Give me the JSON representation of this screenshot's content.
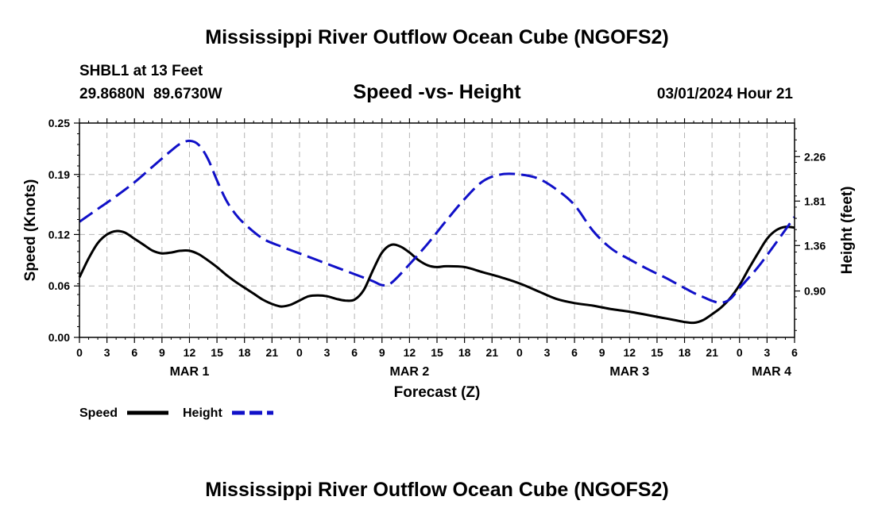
{
  "header": {
    "title": "Mississippi River Outflow Ocean Cube (NGOFS2)",
    "station": "SHBL1 at 13 Feet",
    "coordinates": "29.8680N  89.6730W",
    "subtitle": "Speed -vs- Height",
    "timestamp": "03/01/2024 Hour 21"
  },
  "footer": {
    "title": "Mississippi River Outflow Ocean Cube (NGOFS2)"
  },
  "legend": {
    "speed_label": "Speed",
    "height_label": "Height"
  },
  "colors": {
    "speed": "#000000",
    "height": "#1010c8",
    "grid": "#b4b4b4"
  },
  "chart_data": {
    "type": "line",
    "xlabel": "Forecast (Z)",
    "ylabel": "Speed (Knots)",
    "y2label": "Height (feet)",
    "xlim": [
      0,
      78
    ],
    "ylim": [
      0,
      0.25
    ],
    "y2lim": [
      0.43,
      2.6
    ],
    "x_ticks": [
      0,
      3,
      6,
      9,
      12,
      15,
      18,
      21,
      24,
      27,
      30,
      33,
      36,
      39,
      42,
      45,
      48,
      51,
      54,
      57,
      60,
      63,
      66,
      69,
      72,
      75,
      78
    ],
    "x_tick_labels": [
      "0",
      "3",
      "6",
      "9",
      "12",
      "15",
      "18",
      "21",
      "0",
      "3",
      "6",
      "9",
      "12",
      "15",
      "18",
      "21",
      "0",
      "3",
      "6",
      "9",
      "12",
      "15",
      "18",
      "21",
      "0",
      "3",
      "6"
    ],
    "y_ticks": [
      0.0,
      0.06,
      0.12,
      0.19,
      0.25
    ],
    "y_tick_labels": [
      "0.00",
      "0.06",
      "0.12",
      "0.19",
      "0.25"
    ],
    "y2_ticks": [
      0.9,
      1.36,
      1.81,
      2.26
    ],
    "y2_tick_labels": [
      "0.90",
      "1.36",
      "1.81",
      "2.26"
    ],
    "date_labels": [
      {
        "x": 12,
        "label": "MAR 1"
      },
      {
        "x": 36,
        "label": "MAR 2"
      },
      {
        "x": 60,
        "label": "MAR 3"
      },
      {
        "x": 75.5,
        "label": "MAR 4"
      }
    ],
    "series": [
      {
        "name": "Speed",
        "axis": "left",
        "style": "solid",
        "x": [
          0,
          1,
          2,
          3,
          4,
          5,
          6,
          7,
          8,
          9,
          10,
          11,
          12,
          13,
          14,
          15,
          16,
          17,
          18,
          19,
          20,
          21,
          22,
          23,
          24,
          25,
          26,
          27,
          28,
          29,
          30,
          31,
          32,
          33,
          34,
          35,
          36,
          37,
          38,
          39,
          40,
          42,
          44,
          46,
          48,
          50,
          52,
          54,
          56,
          58,
          60,
          62,
          64,
          65,
          66,
          67,
          68,
          69,
          70,
          71,
          72,
          73,
          74,
          75,
          76,
          77,
          78
        ],
        "values": [
          0.07,
          0.092,
          0.11,
          0.12,
          0.124,
          0.122,
          0.115,
          0.108,
          0.101,
          0.098,
          0.099,
          0.101,
          0.101,
          0.097,
          0.09,
          0.082,
          0.073,
          0.065,
          0.058,
          0.051,
          0.044,
          0.039,
          0.036,
          0.038,
          0.043,
          0.048,
          0.049,
          0.048,
          0.045,
          0.043,
          0.044,
          0.055,
          0.078,
          0.099,
          0.108,
          0.106,
          0.099,
          0.09,
          0.084,
          0.082,
          0.083,
          0.082,
          0.076,
          0.07,
          0.063,
          0.054,
          0.045,
          0.04,
          0.037,
          0.033,
          0.03,
          0.026,
          0.022,
          0.02,
          0.018,
          0.017,
          0.02,
          0.027,
          0.035,
          0.046,
          0.061,
          0.08,
          0.098,
          0.115,
          0.125,
          0.129,
          0.128
        ]
      },
      {
        "name": "Height",
        "axis": "right",
        "style": "dashed",
        "x": [
          0,
          2,
          4,
          6,
          8,
          10,
          11,
          12,
          13,
          14,
          15,
          16,
          17,
          18,
          20,
          22,
          24,
          26,
          28,
          30,
          32,
          33,
          34,
          36,
          38,
          40,
          42,
          44,
          46,
          48,
          50,
          52,
          54,
          56,
          58,
          60,
          62,
          64,
          65,
          66,
          67,
          68,
          69,
          70,
          71,
          72,
          74,
          76,
          78
        ],
        "values": [
          1.6,
          1.73,
          1.86,
          2.0,
          2.16,
          2.32,
          2.39,
          2.42,
          2.38,
          2.24,
          2.02,
          1.82,
          1.68,
          1.58,
          1.43,
          1.35,
          1.28,
          1.21,
          1.14,
          1.07,
          1.0,
          0.96,
          0.98,
          1.17,
          1.38,
          1.61,
          1.83,
          2.01,
          2.08,
          2.08,
          2.04,
          1.93,
          1.77,
          1.51,
          1.33,
          1.22,
          1.12,
          1.03,
          0.98,
          0.93,
          0.88,
          0.84,
          0.8,
          0.78,
          0.82,
          0.93,
          1.14,
          1.39,
          1.65
        ]
      }
    ]
  }
}
